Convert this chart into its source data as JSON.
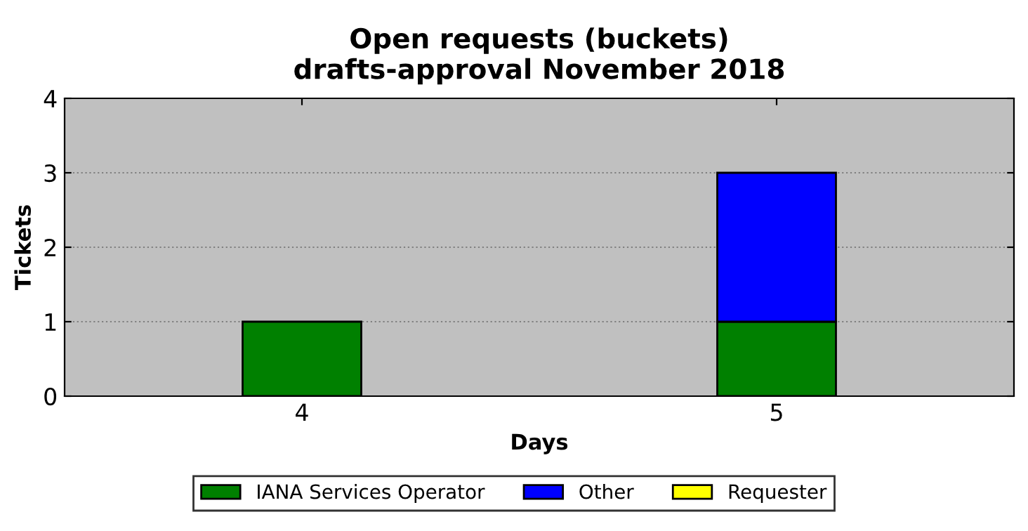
{
  "chart_data": {
    "type": "bar",
    "title": "Open requests (buckets)\ndrafts-approval November 2018",
    "xlabel": "Days",
    "ylabel": "Tickets",
    "categories": [
      "4",
      "5"
    ],
    "stacked": true,
    "series": [
      {
        "name": "IANA Services Operator",
        "color": "#008000",
        "values": [
          1,
          1
        ]
      },
      {
        "name": "Other",
        "color": "#0000ff",
        "values": [
          0,
          2
        ]
      },
      {
        "name": "Requester",
        "color": "#ffff00",
        "values": [
          0,
          0
        ]
      }
    ],
    "ylim": [
      0,
      4
    ],
    "yticks": [
      0,
      1,
      2,
      3,
      4
    ],
    "grid": "y",
    "legend": "bottom"
  }
}
